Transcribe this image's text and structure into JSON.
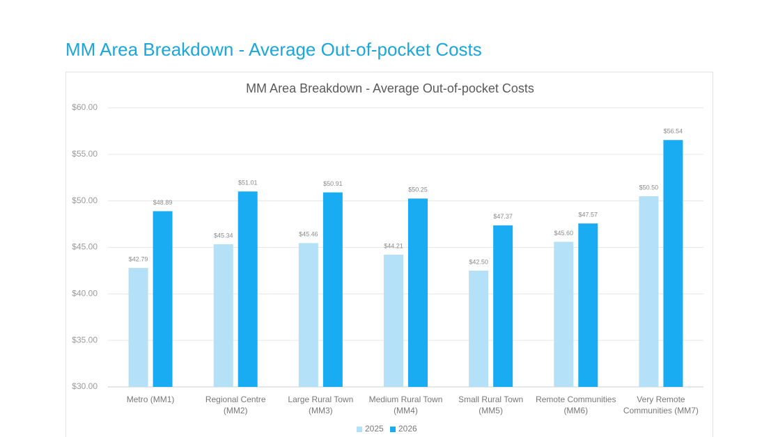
{
  "heading": "MM Area Breakdown - Average Out-of-pocket Costs",
  "chart_data": {
    "type": "bar",
    "title": "MM Area Breakdown - Average Out-of-pocket Costs",
    "categories": [
      "Metro (MM1)",
      "Regional Centre (MM2)",
      "Large Rural Town (MM3)",
      "Medium Rural Town (MM4)",
      "Small Rural Town (MM5)",
      "Remote Communities (MM6)",
      "Very Remote Communities (MM7)"
    ],
    "series": [
      {
        "name": "2025",
        "color": "#b5e1f8",
        "values": [
          42.79,
          45.34,
          45.46,
          44.21,
          42.5,
          45.6,
          50.5
        ],
        "value_labels": [
          "$42.79",
          "$45.34",
          "$45.46",
          "$44.21",
          "$42.50",
          "$45.60",
          "$50.50"
        ]
      },
      {
        "name": "2026",
        "color": "#1aacf2",
        "values": [
          48.89,
          51.01,
          50.91,
          50.25,
          47.37,
          47.57,
          56.54
        ],
        "value_labels": [
          "$48.89",
          "$51.01",
          "$50.91",
          "$50.25",
          "$47.37",
          "$47.57",
          "$56.54"
        ]
      }
    ],
    "ylim": [
      30,
      60
    ],
    "yticks": [
      {
        "value": 30,
        "label": "$30.00"
      },
      {
        "value": 35,
        "label": "$35.00"
      },
      {
        "value": 40,
        "label": "$40.00"
      },
      {
        "value": 45,
        "label": "$45.00"
      },
      {
        "value": 50,
        "label": "$50.00"
      },
      {
        "value": 55,
        "label": "$55.00"
      },
      {
        "value": 60,
        "label": "$60.00"
      }
    ],
    "grid": true,
    "legend": "bottom"
  }
}
